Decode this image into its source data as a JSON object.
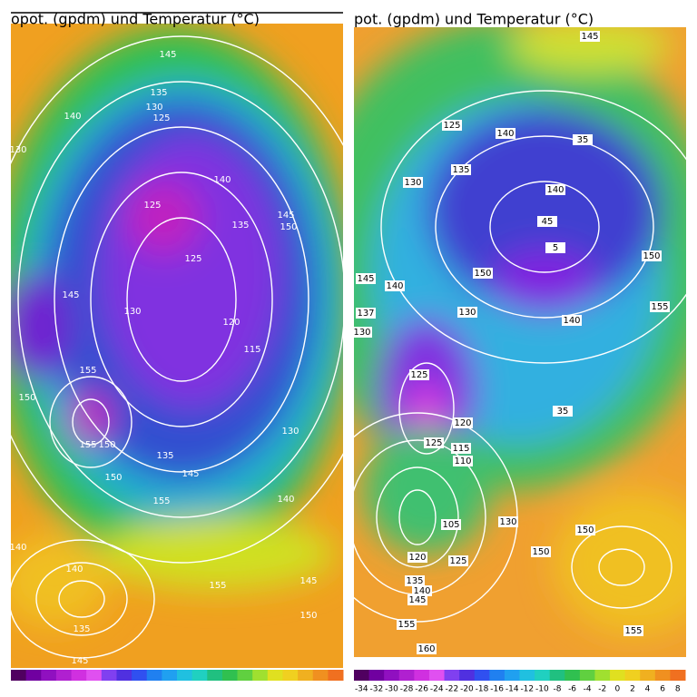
{
  "left_panel": {
    "title": "opot. (gpdm) und Temperatur (°C)",
    "contour_labels": [
      "145",
      "135",
      "130",
      "125",
      "140",
      "130",
      "140",
      "125",
      "135",
      "145",
      "150",
      "125",
      "145",
      "130",
      "120",
      "115",
      "155",
      "150",
      "130",
      "155",
      "150",
      "135",
      "145",
      "150",
      "155",
      "140",
      "140",
      "140",
      "155",
      "145",
      "150",
      "135",
      "145"
    ]
  },
  "right_panel": {
    "title": "pot. (gpdm) und Temperatur (°C)",
    "contour_labels": [
      "145",
      "125",
      "140",
      "135",
      "130",
      "35",
      "140",
      "45",
      "5",
      "150",
      "150",
      "145",
      "140",
      "140",
      "130",
      "137",
      "130",
      "155",
      "125",
      "35",
      "120",
      "125",
      "115",
      "110",
      "105",
      "130",
      "150",
      "150",
      "120",
      "125",
      "135",
      "140",
      "145",
      "155",
      "155",
      "160"
    ],
    "colorbar_labels": [
      "-34",
      "-32",
      "-30",
      "-28",
      "-26",
      "-24",
      "-22",
      "-20",
      "-18",
      "-16",
      "-14",
      "-12",
      "-10",
      "-8",
      "-6",
      "-4",
      "-2",
      "0",
      "2",
      "4",
      "6",
      "8"
    ]
  }
}
